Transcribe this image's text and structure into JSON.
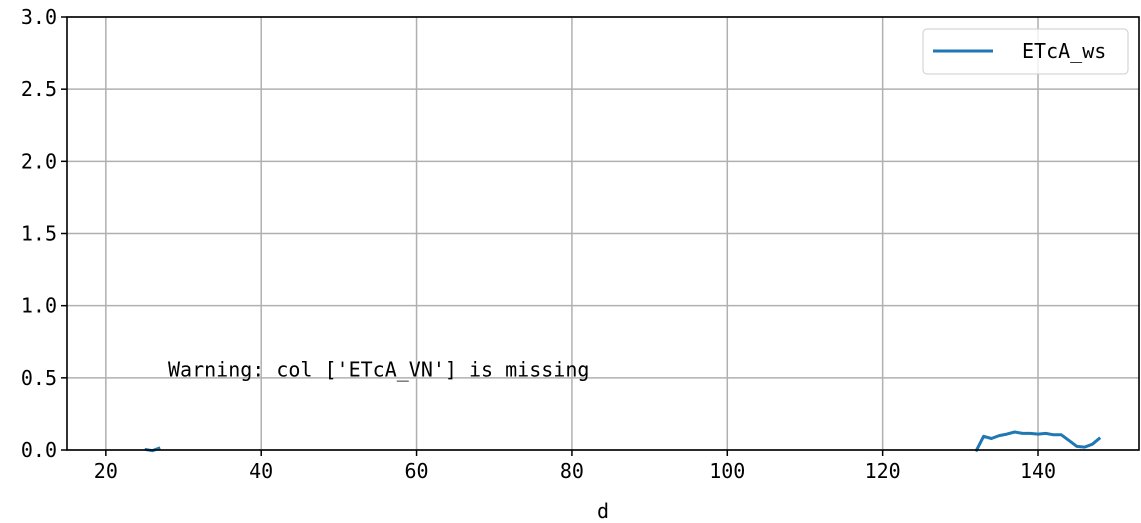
{
  "chart_data": {
    "type": "line",
    "title": "",
    "xlabel": "d",
    "ylabel": "",
    "xlim": [
      15,
      153
    ],
    "ylim": [
      0,
      3.0
    ],
    "x_ticks": [
      20,
      40,
      60,
      80,
      100,
      120,
      140
    ],
    "x_tick_labels": [
      "20",
      "40",
      "60",
      "80",
      "100",
      "120",
      "140"
    ],
    "y_ticks": [
      0,
      0.5,
      1.0,
      1.5,
      2.0,
      2.5,
      3.0
    ],
    "y_tick_labels": [
      "0.0",
      "0.5",
      "1.0",
      "1.5",
      "2.0",
      "2.5",
      "3.0"
    ],
    "grid": true,
    "legend_position": "top-right",
    "series": [
      {
        "name": "ETcA_ws",
        "color": "#1f77b4",
        "segments": [
          {
            "x": [
              25,
              26,
              27
            ],
            "y": [
              0.005,
              -0.005,
              0.015
            ]
          },
          {
            "x": [
              132,
              133,
              134,
              135,
              136,
              137,
              138,
              139,
              140,
              141,
              142,
              143,
              144,
              145,
              146,
              147,
              148
            ],
            "y": [
              -0.01,
              0.095,
              0.08,
              0.1,
              0.11,
              0.125,
              0.115,
              0.115,
              0.11,
              0.115,
              0.105,
              0.105,
              0.065,
              0.025,
              0.02,
              0.04,
              0.085
            ]
          }
        ]
      }
    ],
    "annotations": [
      {
        "text": "Warning: col ['ETcA_VN'] is missing",
        "x": 28,
        "y": 0.3
      }
    ]
  }
}
